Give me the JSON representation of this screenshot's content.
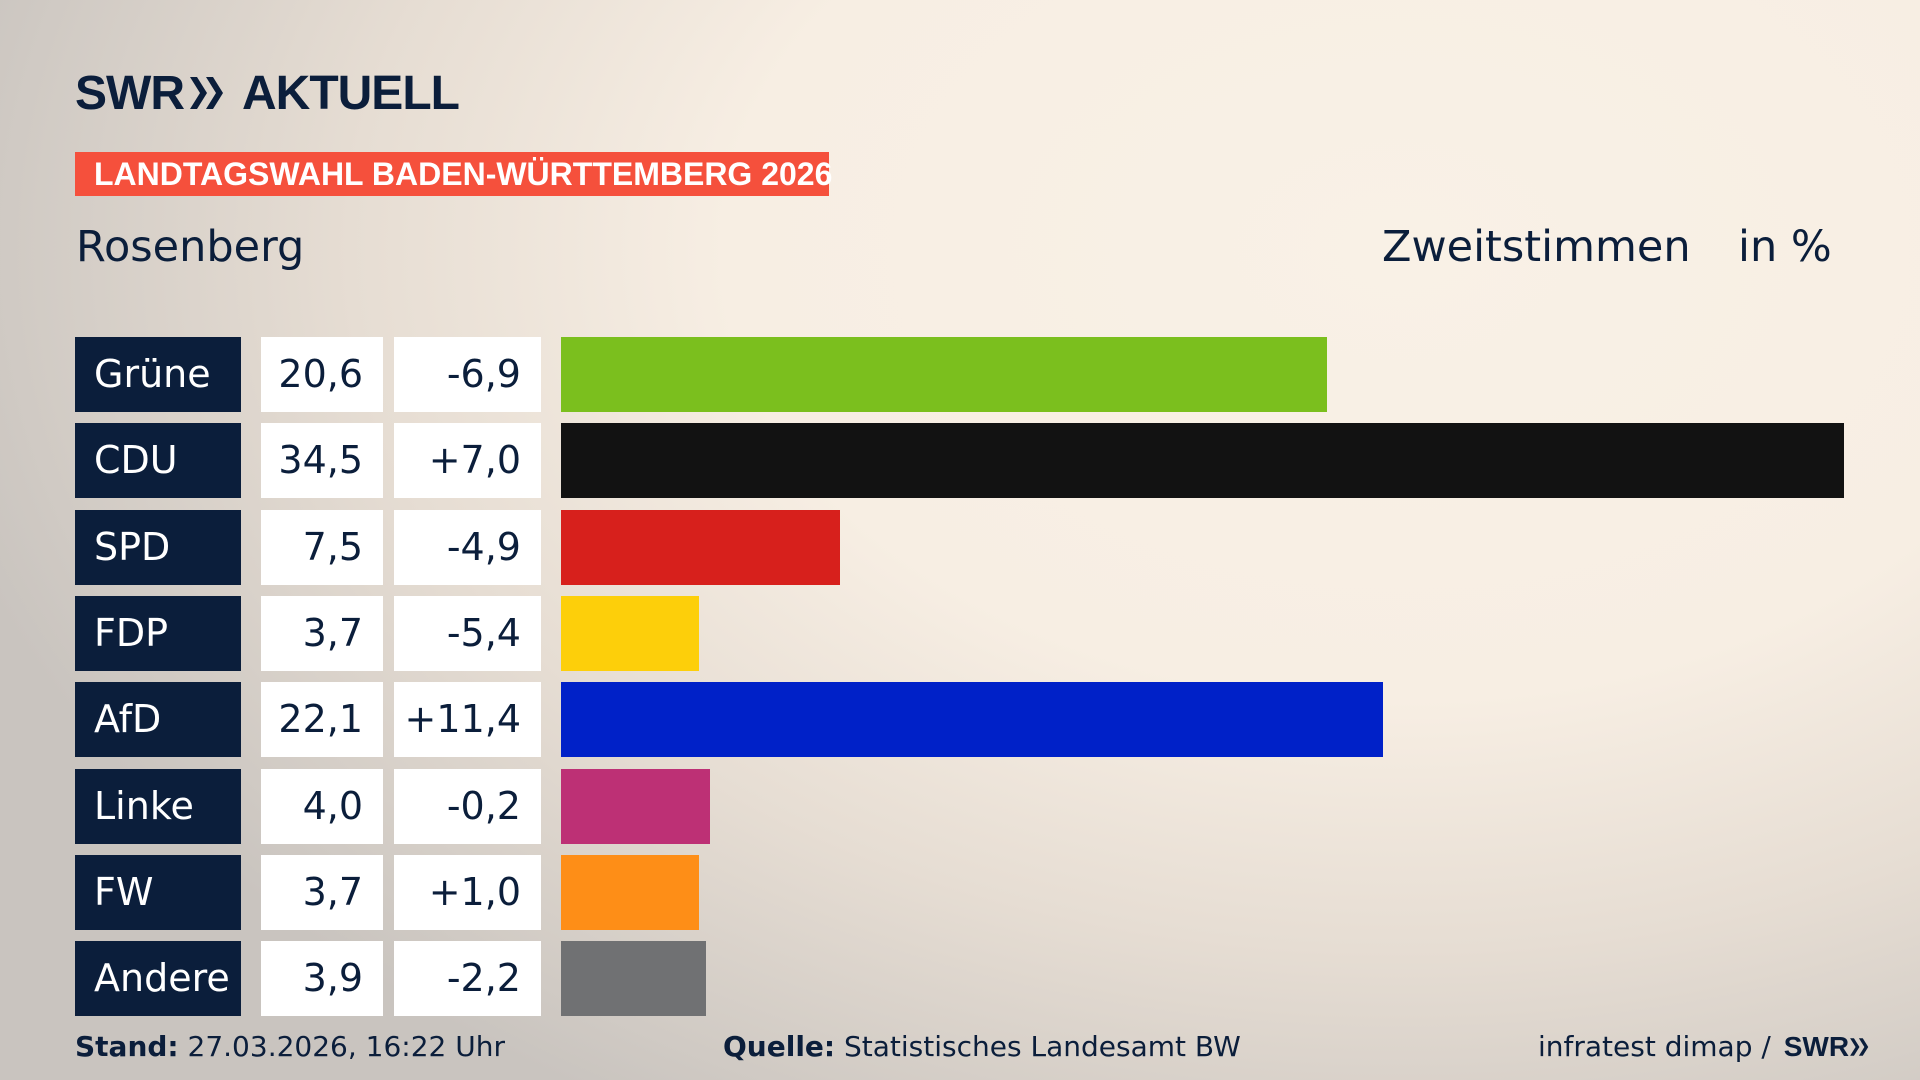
{
  "header": {
    "logo": "SWR AKTUELL",
    "logo_swr": "SWR",
    "logo_aktuell": "AKTUELL",
    "banner": "LANDTAGSWAHL BADEN-WÜRTTEMBERG 2026",
    "region": "Rosenberg",
    "metric": "Zweitstimmen",
    "unit": "in %"
  },
  "chart_data": {
    "type": "bar",
    "orientation": "horizontal",
    "categories": [
      "Grüne",
      "CDU",
      "SPD",
      "FDP",
      "AfD",
      "Linke",
      "FW",
      "Andere"
    ],
    "values": [
      20.6,
      34.5,
      7.5,
      3.7,
      22.1,
      4.0,
      3.7,
      3.9
    ],
    "value_labels": [
      "20,6",
      "34,5",
      "7,5",
      "3,7",
      "22,1",
      "4,0",
      "3,7",
      "3,9"
    ],
    "diff_labels": [
      "-6,9",
      "+7,0",
      "-4,9",
      "-5,4",
      "+11,4",
      "-0,2",
      "+1,0",
      "-2,2"
    ],
    "colors": [
      "#7bbf1e",
      "#121212",
      "#d7201c",
      "#fdcf0a",
      "#0021c8",
      "#bd3075",
      "#fe8e17",
      "#707173"
    ],
    "title": "Zweitstimmen",
    "ylabel": "in %",
    "xlim": [
      0,
      34.5
    ],
    "grid": false
  },
  "footer": {
    "stand_label": "Stand:",
    "stand_value": "27.03.2026, 16:22 Uhr",
    "source_label": "Quelle:",
    "source_value": "Statistisches Landesamt BW",
    "credit": "infratest dimap / ",
    "credit_logo": "SWR"
  }
}
